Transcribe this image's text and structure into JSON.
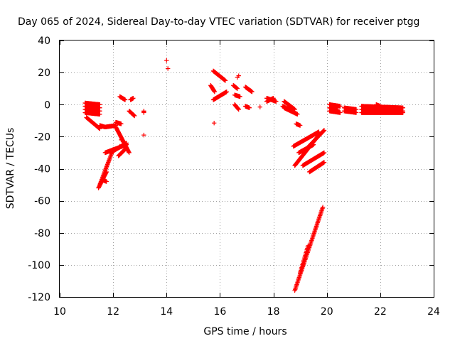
{
  "chart_data": {
    "type": "scatter",
    "title": "Day 065 of 2024, Sidereal Day-to-day VTEC variation (SDTVAR) for receiver ptgg",
    "xlabel": "GPS time / hours",
    "ylabel": "SDTVAR / TECUs",
    "xlim": [
      10,
      24
    ],
    "ylim": [
      -120,
      40
    ],
    "xticks": [
      10,
      12,
      14,
      16,
      18,
      20,
      22,
      24
    ],
    "yticks": [
      -120,
      -100,
      -80,
      -60,
      -40,
      -20,
      0,
      20,
      40
    ],
    "grid": true,
    "marker": "+",
    "marker_color": "#ff0000",
    "segments": [
      {
        "x": [
          10.95,
          11.5
        ],
        "y": [
          1,
          0
        ]
      },
      {
        "x": [
          10.95,
          11.5
        ],
        "y": [
          -1,
          -2
        ]
      },
      {
        "x": [
          10.95,
          11.5
        ],
        "y": [
          -3,
          -4
        ]
      },
      {
        "x": [
          10.95,
          11.5
        ],
        "y": [
          -5,
          -6
        ]
      },
      {
        "x": [
          11.0,
          11.5
        ],
        "y": [
          -8,
          -15
        ]
      },
      {
        "x": [
          11.5,
          11.7
        ],
        "y": [
          -13,
          -14
        ]
      },
      {
        "x": [
          11.7,
          12.1
        ],
        "y": [
          -14,
          -13
        ]
      },
      {
        "x": [
          12.1,
          12.6
        ],
        "y": [
          -14,
          -30
        ]
      },
      {
        "x": [
          12.1,
          12.3
        ],
        "y": [
          -11,
          -12
        ]
      },
      {
        "x": [
          11.7,
          12.5
        ],
        "y": [
          -30,
          -25
        ]
      },
      {
        "x": [
          11.9,
          12.5
        ],
        "y": [
          -30,
          -24
        ]
      },
      {
        "x": [
          12.2,
          12.5
        ],
        "y": [
          -32,
          -27
        ]
      },
      {
        "x": [
          11.5,
          12.0
        ],
        "y": [
          -50,
          -28
        ]
      },
      {
        "x": [
          11.45,
          11.75
        ],
        "y": [
          -52,
          -42
        ]
      },
      {
        "x": [
          11.6,
          11.75
        ],
        "y": [
          -47,
          -48
        ]
      },
      {
        "x": [
          12.25,
          12.45
        ],
        "y": [
          5,
          3
        ]
      },
      {
        "x": [
          12.65,
          12.75
        ],
        "y": [
          3,
          4
        ]
      },
      {
        "x": [
          12.6,
          12.8
        ],
        "y": [
          -4,
          -7
        ]
      },
      {
        "x": [
          13.15,
          13.15
        ],
        "y": [
          -4,
          -5
        ]
      },
      {
        "x": [
          15.65,
          15.8
        ],
        "y": [
          12,
          8
        ]
      },
      {
        "x": [
          15.75,
          16.2
        ],
        "y": [
          21,
          15
        ]
      },
      {
        "x": [
          15.75,
          16.25
        ],
        "y": [
          3,
          8
        ]
      },
      {
        "x": [
          16.5,
          16.65
        ],
        "y": [
          12,
          10
        ]
      },
      {
        "x": [
          16.55,
          16.75
        ],
        "y": [
          6,
          5
        ]
      },
      {
        "x": [
          16.95,
          17.2
        ],
        "y": [
          11,
          8
        ]
      },
      {
        "x": [
          16.55,
          16.7
        ],
        "y": [
          0,
          -3
        ]
      },
      {
        "x": [
          16.95,
          17.1
        ],
        "y": [
          -1,
          -2
        ]
      },
      {
        "x": [
          17.75,
          18.1
        ],
        "y": [
          4,
          2
        ]
      },
      {
        "x": [
          17.75,
          18.0
        ],
        "y": [
          2,
          4
        ]
      },
      {
        "x": [
          18.4,
          18.8
        ],
        "y": [
          2,
          -3
        ]
      },
      {
        "x": [
          18.4,
          18.9
        ],
        "y": [
          -2,
          -6
        ]
      },
      {
        "x": [
          18.35,
          18.8
        ],
        "y": [
          -1,
          -5
        ]
      },
      {
        "x": [
          18.85,
          19.0
        ],
        "y": [
          -12,
          -13
        ]
      },
      {
        "x": [
          18.75,
          19.7
        ],
        "y": [
          -26,
          -17
        ]
      },
      {
        "x": [
          18.8,
          19.7
        ],
        "y": [
          -38,
          -19
        ]
      },
      {
        "x": [
          19.1,
          19.9
        ],
        "y": [
          -30,
          -16
        ]
      },
      {
        "x": [
          18.95,
          19.5
        ],
        "y": [
          -30,
          -25
        ]
      },
      {
        "x": [
          19.1,
          19.9
        ],
        "y": [
          -38,
          -30
        ]
      },
      {
        "x": [
          19.35,
          19.9
        ],
        "y": [
          -42,
          -36
        ]
      },
      {
        "x": [
          18.8,
          19.85
        ],
        "y": [
          -116,
          -64
        ]
      },
      {
        "x": [
          19.0,
          19.3
        ],
        "y": [
          -105,
          -88
        ]
      },
      {
        "x": [
          20.1,
          20.5
        ],
        "y": [
          0,
          -1
        ]
      },
      {
        "x": [
          20.1,
          20.5
        ],
        "y": [
          -4,
          -5
        ]
      },
      {
        "x": [
          20.1,
          20.4
        ],
        "y": [
          -2,
          -3
        ]
      },
      {
        "x": [
          20.65,
          21.1
        ],
        "y": [
          -2,
          -3
        ]
      },
      {
        "x": [
          20.65,
          21.1
        ],
        "y": [
          -4,
          -5
        ]
      },
      {
        "x": [
          21.3,
          22.85
        ],
        "y": [
          -1,
          -2
        ]
      },
      {
        "x": [
          21.3,
          22.85
        ],
        "y": [
          -3,
          -4
        ]
      },
      {
        "x": [
          21.3,
          22.85
        ],
        "y": [
          -5,
          -5
        ]
      },
      {
        "x": [
          21.85,
          22.0
        ],
        "y": [
          0,
          -1
        ]
      }
    ],
    "points": [
      {
        "x": 14.0,
        "y": 27.5
      },
      {
        "x": 14.05,
        "y": 22.5
      },
      {
        "x": 13.15,
        "y": -19
      },
      {
        "x": 15.78,
        "y": -11.5
      },
      {
        "x": 16.65,
        "y": 17
      },
      {
        "x": 16.7,
        "y": 18
      },
      {
        "x": 17.5,
        "y": -1.5
      },
      {
        "x": 12.25,
        "y": -26
      },
      {
        "x": 12.3,
        "y": -22
      }
    ]
  }
}
